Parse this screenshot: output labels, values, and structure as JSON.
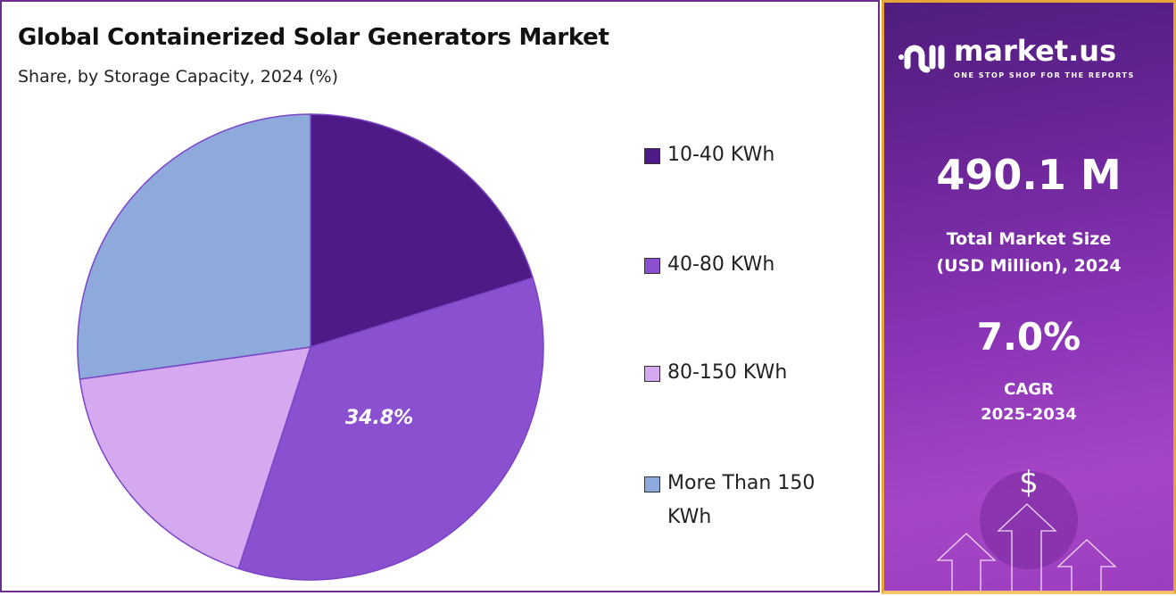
{
  "chart_data": {
    "type": "pie",
    "title": "Global Containerized Solar Generators Market",
    "subtitle": "Share, by Storage Capacity, 2024 (%)",
    "categories": [
      "10-40 KWh",
      "40-80 KWh",
      "80-150 KWh",
      "More Than 150 KWh"
    ],
    "values": [
      20.2,
      34.8,
      17.8,
      27.2
    ],
    "colors": [
      "#4e1a85",
      "#8a50d0",
      "#d5a9ef",
      "#8eaadc"
    ],
    "data_labels": [
      "",
      "34.8%",
      "",
      ""
    ],
    "legend": "right"
  },
  "brand": {
    "name": "market.us",
    "tagline": "ONE STOP SHOP FOR THE REPORTS"
  },
  "stats": {
    "market_size": "490.1 M",
    "market_size_label_1": "Total Market Size",
    "market_size_label_2": "(USD Million), 2024",
    "cagr": "7.0%",
    "cagr_label_1": "CAGR",
    "cagr_label_2": "2025-2034",
    "currency_symbol": "$"
  }
}
